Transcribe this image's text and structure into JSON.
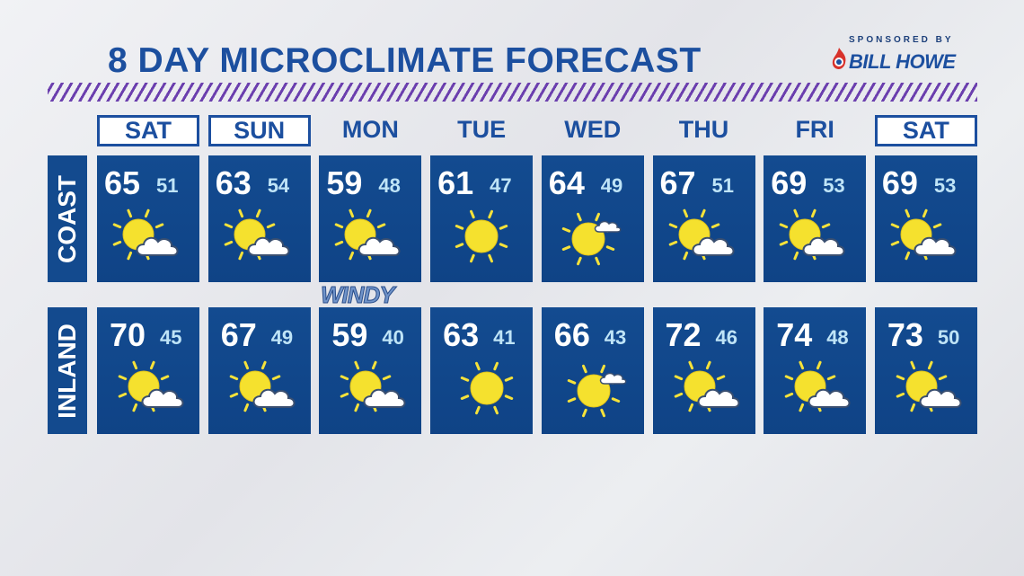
{
  "header": {
    "title": "8 DAY MICROCLIMATE FORECAST",
    "sponsor_label": "SPONSORED BY",
    "sponsor": "BILL HOWE"
  },
  "days": [
    "SAT",
    "SUN",
    "MON",
    "TUE",
    "WED",
    "THU",
    "FRI",
    "SAT"
  ],
  "rows": [
    {
      "label": "COAST",
      "highs": [
        "65",
        "63",
        "59",
        "61",
        "64",
        "67",
        "69",
        "69"
      ],
      "lows": [
        "51",
        "54",
        "48",
        "47",
        "49",
        "51",
        "53",
        "53"
      ]
    },
    {
      "label": "INLAND",
      "highs": [
        "70",
        "67",
        "59",
        "63",
        "66",
        "72",
        "74",
        "73"
      ],
      "lows": [
        "45",
        "49",
        "40",
        "41",
        "43",
        "46",
        "48",
        "50"
      ]
    }
  ],
  "annotation": "WINDY"
}
